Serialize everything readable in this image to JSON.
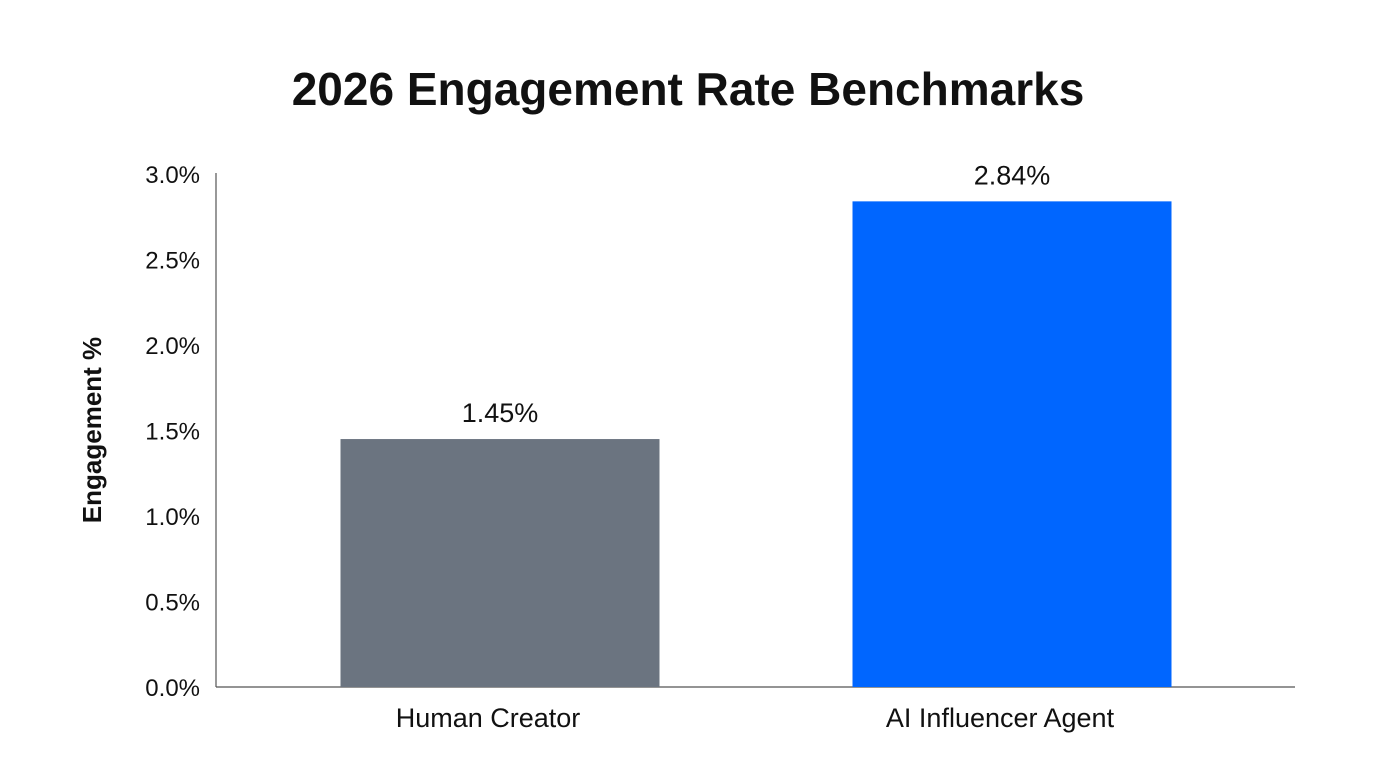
{
  "chart_data": {
    "type": "bar",
    "title": "2026 Engagement Rate Benchmarks",
    "xlabel": "",
    "ylabel": "Engagement %",
    "categories": [
      "Human Creator",
      "AI Influencer Agent"
    ],
    "values": [
      1.45,
      2.84
    ],
    "data_labels": [
      "1.45%",
      "2.84%"
    ],
    "colors": [
      "#6b7480",
      "#0066ff"
    ],
    "ylim": [
      0,
      3.0
    ],
    "yticks": [
      0.0,
      0.5,
      1.0,
      1.5,
      2.0,
      2.5,
      3.0
    ],
    "ytick_labels": [
      "0.0%",
      "0.5%",
      "1.0%",
      "1.5%",
      "2.0%",
      "2.5%",
      "3.0%"
    ],
    "grid": false,
    "legend": "none"
  }
}
